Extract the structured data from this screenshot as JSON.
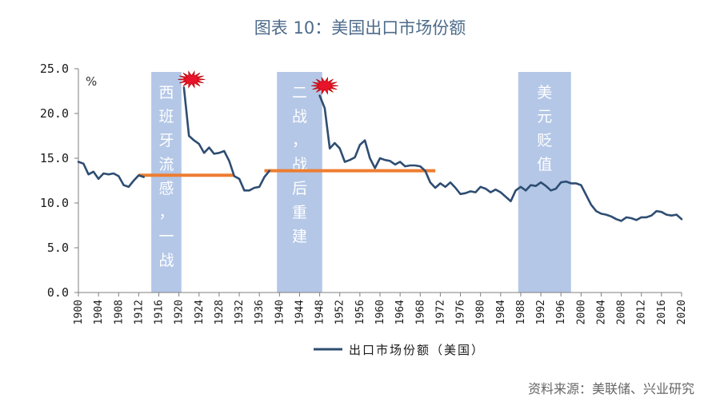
{
  "title": "图表 10：美国出口市场份额",
  "source": "资料来源：美联储、兴业研究",
  "colors": {
    "line": "#2e4d72",
    "band": "#b4c7e7",
    "avg": "#ed7d31",
    "star": "#e8142a",
    "title": "#4d6b8a"
  },
  "chart_data": {
    "type": "line",
    "unit": "%",
    "ylim": [
      0,
      25
    ],
    "yticks": [
      "25.0",
      "20.0",
      "15.0",
      "10.0",
      "5.0",
      "0.0"
    ],
    "ytick_values": [
      25,
      20,
      15,
      10,
      5,
      0
    ],
    "xlim": [
      1900,
      2020
    ],
    "xticks": [
      "1900",
      "1904",
      "1908",
      "1912",
      "1916",
      "1920",
      "1924",
      "1928",
      "1932",
      "1936",
      "1940",
      "1944",
      "1948",
      "1952",
      "1956",
      "1960",
      "1964",
      "1968",
      "1972",
      "1976",
      "1980",
      "1984",
      "1988",
      "1992",
      "1996",
      "2000",
      "2004",
      "2008",
      "2012",
      "2016",
      "2020"
    ],
    "xtick_values": [
      1900,
      1904,
      1908,
      1912,
      1916,
      1920,
      1924,
      1928,
      1932,
      1936,
      1940,
      1944,
      1948,
      1952,
      1956,
      1960,
      1964,
      1968,
      1972,
      1976,
      1980,
      1984,
      1988,
      1992,
      1996,
      2000,
      2004,
      2008,
      2012,
      2016,
      2020
    ],
    "series": [
      {
        "name": "出口市场份额（美国）",
        "segments": [
          {
            "x": [
              1900,
              1901,
              1902,
              1903,
              1904,
              1905,
              1906,
              1907,
              1908,
              1909,
              1910,
              1911,
              1912,
              1913
            ],
            "y": [
              14.6,
              14.4,
              13.2,
              13.5,
              12.7,
              13.3,
              13.2,
              13.3,
              13.0,
              12.0,
              11.8,
              12.5,
              13.1,
              12.9
            ]
          },
          {
            "x": [
              1921,
              1922,
              1923,
              1924,
              1925,
              1926,
              1927,
              1928,
              1929,
              1930,
              1931,
              1932,
              1933,
              1934,
              1935,
              1936,
              1937,
              1938
            ],
            "y": [
              22.9,
              17.5,
              17.0,
              16.6,
              15.6,
              16.2,
              15.5,
              15.6,
              15.8,
              14.7,
              13.0,
              12.7,
              11.4,
              11.4,
              11.7,
              11.8,
              12.9,
              13.6
            ]
          },
          {
            "x": [
              1948,
              1949,
              1950,
              1951,
              1952,
              1953,
              1954,
              1955,
              1956,
              1957,
              1958,
              1959,
              1960,
              1961,
              1962,
              1963,
              1964,
              1965,
              1966,
              1967,
              1968,
              1969,
              1970,
              1971,
              1972,
              1973,
              1974,
              1975,
              1976,
              1977,
              1978,
              1979,
              1980,
              1981,
              1982,
              1983,
              1984,
              1985,
              1986,
              1987,
              1988,
              1989,
              1990,
              1991,
              1992,
              1993,
              1994,
              1995,
              1996,
              1997,
              1998,
              1999,
              2000,
              2001,
              2002,
              2003,
              2004,
              2005,
              2006,
              2007,
              2008,
              2009,
              2010,
              2011,
              2012,
              2013,
              2014,
              2015,
              2016,
              2017,
              2018,
              2019,
              2020
            ],
            "y": [
              22.0,
              20.6,
              16.1,
              16.7,
              16.1,
              14.6,
              14.8,
              15.1,
              16.5,
              17.0,
              15.0,
              13.9,
              15.0,
              14.8,
              14.7,
              14.3,
              14.6,
              14.1,
              14.2,
              14.2,
              14.1,
              13.6,
              12.3,
              11.7,
              12.2,
              11.8,
              12.3,
              11.7,
              11.0,
              11.1,
              11.3,
              11.2,
              11.8,
              11.6,
              11.2,
              11.5,
              11.2,
              10.7,
              10.2,
              11.4,
              11.8,
              11.4,
              12.0,
              11.9,
              12.3,
              11.9,
              11.4,
              11.6,
              12.3,
              12.4,
              12.2,
              12.2,
              12.0,
              10.9,
              9.8,
              9.1,
              8.8,
              8.7,
              8.5,
              8.2,
              8.0,
              8.4,
              8.3,
              8.1,
              8.4,
              8.4,
              8.6,
              9.1,
              9.0,
              8.7,
              8.6,
              8.7,
              8.2
            ]
          }
        ]
      }
    ],
    "shaded_periods": [
      {
        "x0": 1914.5,
        "x1": 1920.5,
        "label_chars": [
          "西",
          "班",
          "牙",
          "流",
          "感",
          "，",
          "一",
          "战"
        ]
      },
      {
        "x0": 1939.5,
        "x1": 1948.5,
        "label_chars": [
          "二",
          "战",
          "，",
          "战",
          "后",
          "重",
          "建"
        ]
      },
      {
        "x0": 1987.5,
        "x1": 1998.0,
        "label_chars": [
          "美",
          "元",
          "贬",
          "值"
        ]
      }
    ],
    "average_lines": [
      {
        "x0": 1912,
        "x1": 1931,
        "y": 13.1
      },
      {
        "x0": 1937,
        "x1": 1971,
        "y": 13.6
      }
    ],
    "markers": [
      {
        "x": 1922.5,
        "y": 23.8
      },
      {
        "x": 1949.0,
        "y": 23.1
      }
    ],
    "legend": "出口市场份额（美国）"
  }
}
